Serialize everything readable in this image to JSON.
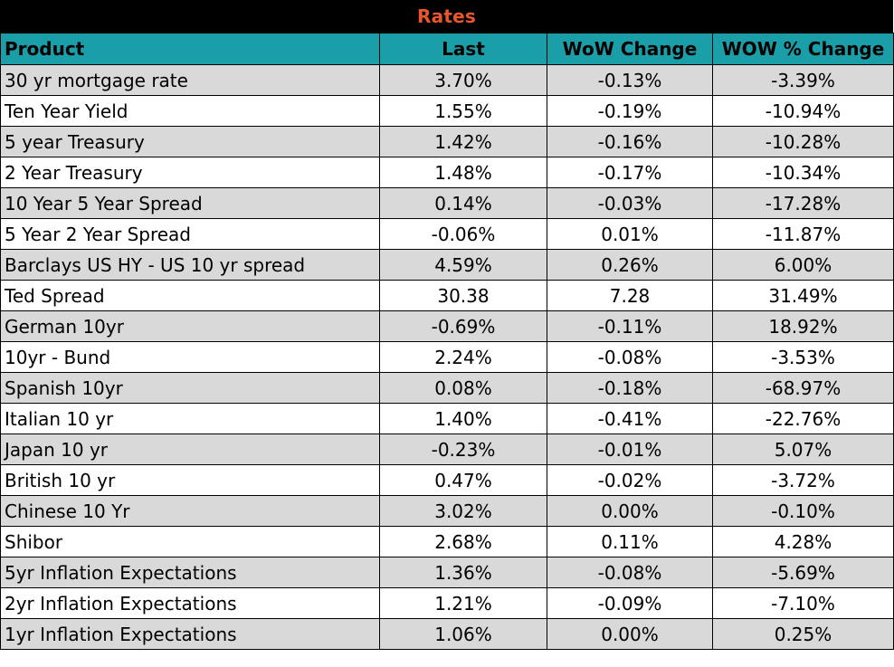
{
  "title": "Rates",
  "colors": {
    "title_background": "#000000",
    "title_text": "#e8572b",
    "header_background": "#1a9ea8",
    "row_shade": "#d9d9d9",
    "row_plain": "#ffffff"
  },
  "columns": [
    "Product",
    "Last",
    "WoW Change",
    "WOW % Change"
  ],
  "rows": [
    [
      "30 yr mortgage rate",
      "3.70%",
      "-0.13%",
      "-3.39%"
    ],
    [
      "Ten Year Yield",
      "1.55%",
      "-0.19%",
      "-10.94%"
    ],
    [
      "5 year Treasury",
      "1.42%",
      "-0.16%",
      "-10.28%"
    ],
    [
      "2 Year Treasury",
      "1.48%",
      "-0.17%",
      "-10.34%"
    ],
    [
      "10 Year 5 Year Spread",
      "0.14%",
      "-0.03%",
      "-17.28%"
    ],
    [
      "5 Year 2 Year Spread",
      "-0.06%",
      "0.01%",
      "-11.87%"
    ],
    [
      "Barclays US HY - US 10 yr spread",
      "4.59%",
      "0.26%",
      "6.00%"
    ],
    [
      "Ted Spread",
      "30.38",
      "7.28",
      "31.49%"
    ],
    [
      "German 10yr",
      "-0.69%",
      "-0.11%",
      "18.92%"
    ],
    [
      "10yr - Bund",
      "2.24%",
      "-0.08%",
      "-3.53%"
    ],
    [
      "Spanish 10yr",
      "0.08%",
      "-0.18%",
      "-68.97%"
    ],
    [
      "Italian 10 yr",
      "1.40%",
      "-0.41%",
      "-22.76%"
    ],
    [
      "Japan 10 yr",
      "-0.23%",
      "-0.01%",
      "5.07%"
    ],
    [
      "British 10 yr",
      "0.47%",
      "-0.02%",
      "-3.72%"
    ],
    [
      "Chinese 10 Yr",
      "3.02%",
      "0.00%",
      "-0.10%"
    ],
    [
      "Shibor",
      "2.68%",
      "0.11%",
      "4.28%"
    ],
    [
      "5yr Inflation Expectations",
      "1.36%",
      "-0.08%",
      "-5.69%"
    ],
    [
      "2yr Inflation Expectations",
      "1.21%",
      "-0.09%",
      "-7.10%"
    ],
    [
      "1yr Inflation Expectations",
      "1.06%",
      "0.00%",
      "0.25%"
    ]
  ]
}
